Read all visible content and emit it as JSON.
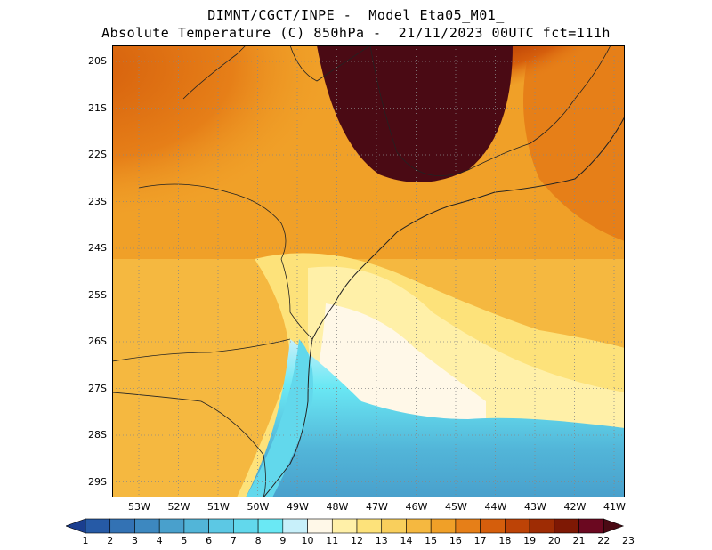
{
  "header": {
    "line1": "DIMNT/CGCT/INPE -  Model Eta05_M01_",
    "line2": "Absolute Temperature (C) 850hPa -  21/11/2023 00UTC fct=111h"
  },
  "map": {
    "lat_labels": [
      "20S",
      "21S",
      "22S",
      "23S",
      "24S",
      "25S",
      "26S",
      "27S",
      "28S",
      "29S"
    ],
    "lon_labels": [
      "53W",
      "52W",
      "51W",
      "50W",
      "49W",
      "48W",
      "47W",
      "46W",
      "45W",
      "44W",
      "43W",
      "42W",
      "41W"
    ]
  },
  "colorbar": {
    "labels": [
      "1",
      "2",
      "3",
      "4",
      "5",
      "6",
      "7",
      "8",
      "9",
      "10",
      "11",
      "12",
      "13",
      "14",
      "15",
      "16",
      "17",
      "18",
      "19",
      "20",
      "21",
      "22",
      "23"
    ],
    "colors": [
      "#1a3e8f",
      "#265aa6",
      "#3372b4",
      "#3d88c0",
      "#49a0cc",
      "#52b5d8",
      "#5cc8e4",
      "#62d8ec",
      "#6ae8f4",
      "#c8f0fa",
      "#fff8e8",
      "#fff0a8",
      "#fde27a",
      "#f9cf5c",
      "#f5b840",
      "#f0a028",
      "#e67f18",
      "#d55e0c",
      "#bd4306",
      "#9e2c04",
      "#7e1804",
      "#6b0820",
      "#4a0a14"
    ],
    "title": ""
  }
}
